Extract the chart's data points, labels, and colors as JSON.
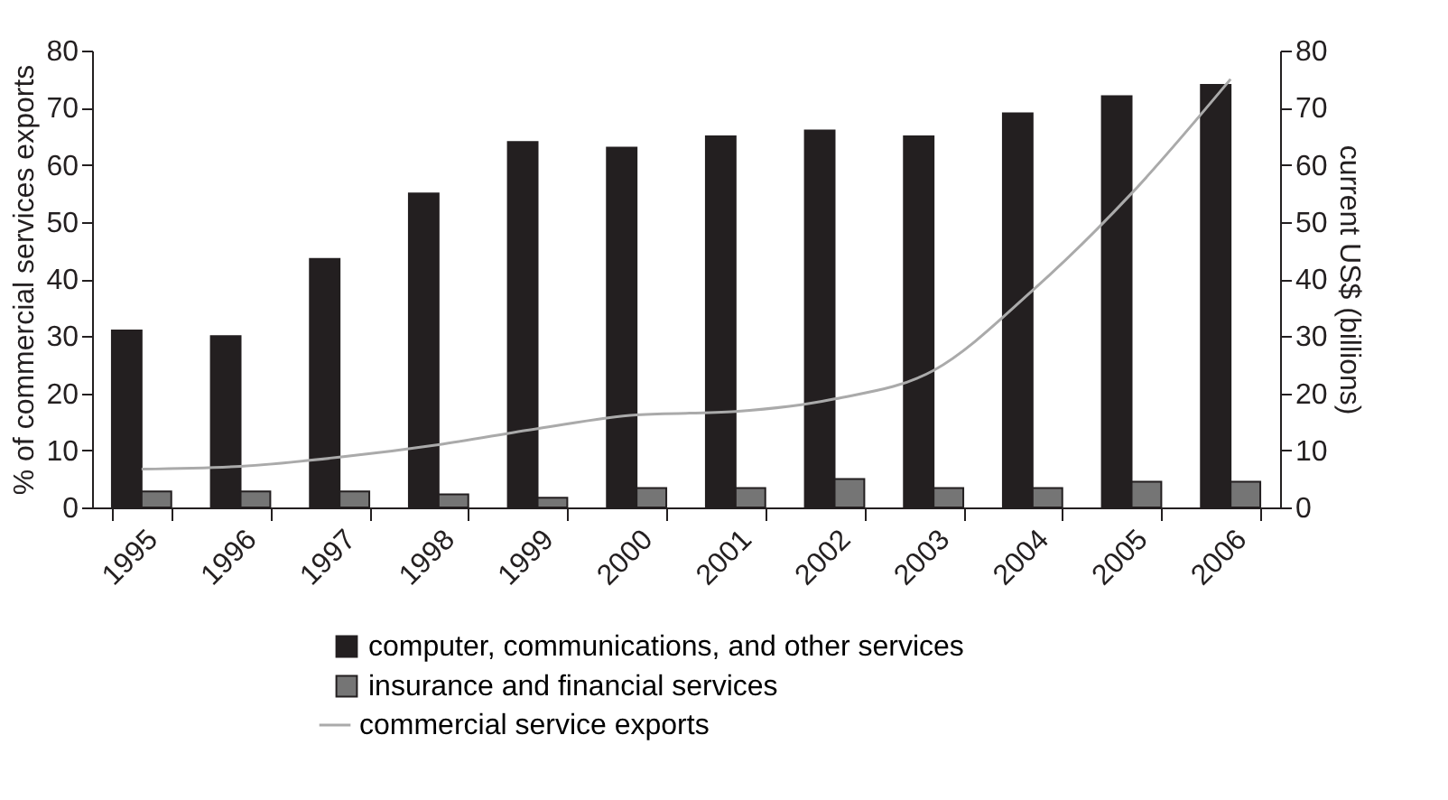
{
  "chart_data": {
    "type": "bar",
    "ylabel": "% of commercial services exports",
    "y2label": "current US$ (billions)",
    "categories": [
      "1995",
      "1996",
      "1997",
      "1998",
      "1999",
      "2000",
      "2001",
      "2002",
      "2003",
      "2004",
      "2005",
      "2006"
    ],
    "series": [
      {
        "name": "computer, communications, and other services",
        "type": "bar",
        "color": "#231f20",
        "values": [
          31,
          30,
          43.5,
          55,
          64,
          63,
          65,
          66,
          65,
          69,
          72,
          74
        ]
      },
      {
        "name": "insurance and financial services",
        "type": "bar",
        "color": "#757575",
        "values": [
          2.8,
          2.8,
          2.8,
          2.3,
          1.7,
          3.4,
          3.4,
          5,
          3.4,
          3.4,
          4.5,
          4.5
        ]
      },
      {
        "name": "commercial service exports",
        "type": "line",
        "axis": "y2",
        "color": "#aaaaaa",
        "values": [
          6.7,
          7.2,
          8.8,
          11,
          13.8,
          16.2,
          16.8,
          19,
          24,
          38,
          55,
          75
        ]
      }
    ],
    "ylim": [
      0,
      80
    ],
    "yticks": [
      0,
      10,
      20,
      30,
      40,
      50,
      60,
      70,
      80
    ],
    "y2lim": [
      0,
      80
    ],
    "y2ticks": [
      0,
      10,
      20,
      30,
      40,
      50,
      60,
      70,
      80
    ],
    "grid": false,
    "legend": "bottom",
    "marker": "none",
    "line_style": "solid"
  }
}
